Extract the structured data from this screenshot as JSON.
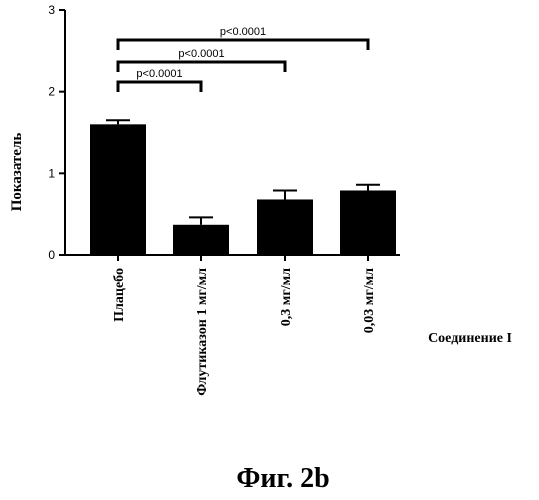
{
  "figure_caption": "Фиг. 2b",
  "chart_data": {
    "type": "bar",
    "categories": [
      "Плацебо",
      "Флутиказон 1 мг/мл",
      "0,3 мг/мл",
      "0,03 мг/мл"
    ],
    "values": [
      1.6,
      0.37,
      0.68,
      0.79
    ],
    "errors": [
      0.05,
      0.09,
      0.11,
      0.07
    ],
    "ylabel": "Показатель",
    "xlabel": "Соединение I",
    "ylim": [
      0,
      3
    ],
    "yticks": [
      "0",
      "1",
      "2",
      "3"
    ],
    "grid": false,
    "annotations": [
      {
        "label": "p<0.0001",
        "from": "Плацебо",
        "to": "Флутиказон 1 мг/мл"
      },
      {
        "label": "p<0.0001",
        "from": "Плацебо",
        "to": "0,3 мг/мл"
      },
      {
        "label": "p<0.0001",
        "from": "Плацебо",
        "to": "0,03 мг/мл"
      }
    ]
  }
}
